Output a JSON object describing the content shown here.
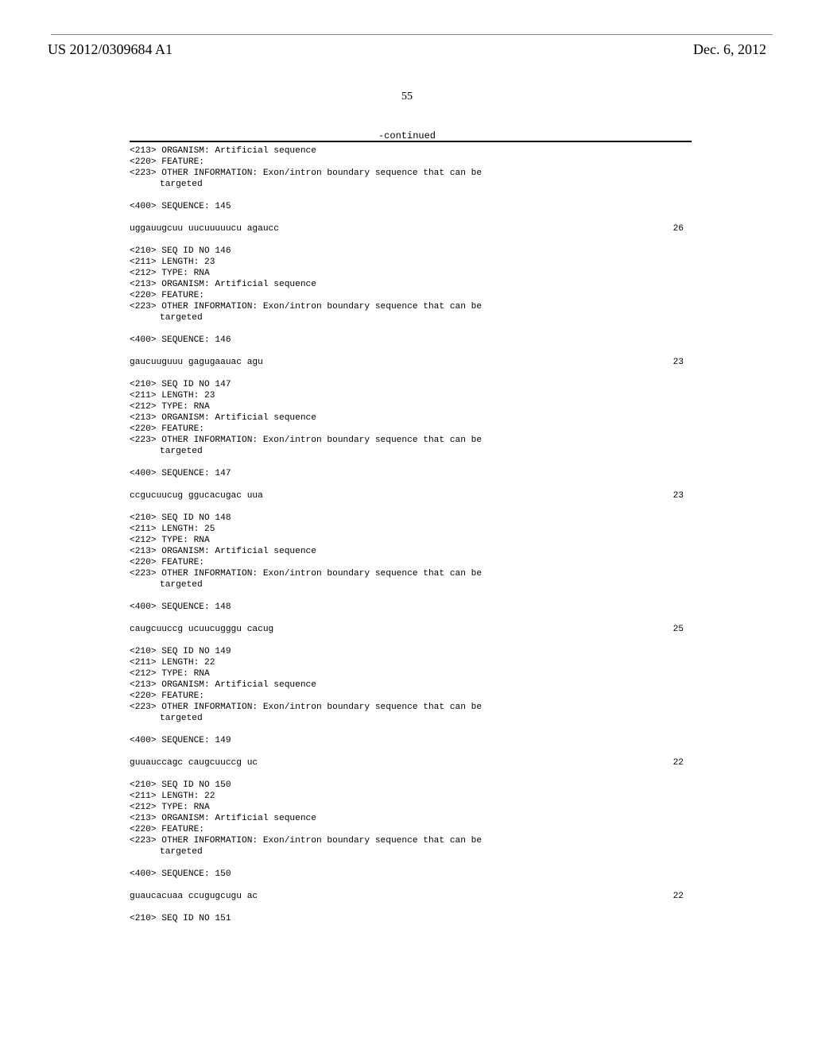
{
  "header": {
    "document_number": "US 2012/0309684 A1",
    "date": "Dec. 6, 2012",
    "page_number": "55",
    "continued": "-continued"
  },
  "entries": [
    {
      "pre_header": [
        "<213> ORGANISM: Artificial sequence",
        "<220> FEATURE:",
        "<223> OTHER INFORMATION: Exon/intron boundary sequence that can be"
      ],
      "pre_header_indent": "targeted",
      "seq_label": "<400> SEQUENCE: 145",
      "seq_text": "uggauugcuu uucuuuuucu agaucc",
      "seq_num": "26"
    },
    {
      "header": [
        "<210> SEQ ID NO 146",
        "<211> LENGTH: 23",
        "<212> TYPE: RNA",
        "<213> ORGANISM: Artificial sequence",
        "<220> FEATURE:",
        "<223> OTHER INFORMATION: Exon/intron boundary sequence that can be"
      ],
      "header_indent": "targeted",
      "seq_label": "<400> SEQUENCE: 146",
      "seq_text": "gaucuuguuu gagugaauac agu",
      "seq_num": "23"
    },
    {
      "header": [
        "<210> SEQ ID NO 147",
        "<211> LENGTH: 23",
        "<212> TYPE: RNA",
        "<213> ORGANISM: Artificial sequence",
        "<220> FEATURE:",
        "<223> OTHER INFORMATION: Exon/intron boundary sequence that can be"
      ],
      "header_indent": "targeted",
      "seq_label": "<400> SEQUENCE: 147",
      "seq_text": "ccgucuucug ggucacugac uua",
      "seq_num": "23"
    },
    {
      "header": [
        "<210> SEQ ID NO 148",
        "<211> LENGTH: 25",
        "<212> TYPE: RNA",
        "<213> ORGANISM: Artificial sequence",
        "<220> FEATURE:",
        "<223> OTHER INFORMATION: Exon/intron boundary sequence that can be"
      ],
      "header_indent": "targeted",
      "seq_label": "<400> SEQUENCE: 148",
      "seq_text": "caugcuuccg ucuucugggu cacug",
      "seq_num": "25"
    },
    {
      "header": [
        "<210> SEQ ID NO 149",
        "<211> LENGTH: 22",
        "<212> TYPE: RNA",
        "<213> ORGANISM: Artificial sequence",
        "<220> FEATURE:",
        "<223> OTHER INFORMATION: Exon/intron boundary sequence that can be"
      ],
      "header_indent": "targeted",
      "seq_label": "<400> SEQUENCE: 149",
      "seq_text": "guuauccagc caugcuuccg uc",
      "seq_num": "22"
    },
    {
      "header": [
        "<210> SEQ ID NO 150",
        "<211> LENGTH: 22",
        "<212> TYPE: RNA",
        "<213> ORGANISM: Artificial sequence",
        "<220> FEATURE:",
        "<223> OTHER INFORMATION: Exon/intron boundary sequence that can be"
      ],
      "header_indent": "targeted",
      "seq_label": "<400> SEQUENCE: 150",
      "seq_text": "guaucacuaa ccugugcugu ac",
      "seq_num": "22"
    }
  ],
  "trailing": "<210> SEQ ID NO 151"
}
